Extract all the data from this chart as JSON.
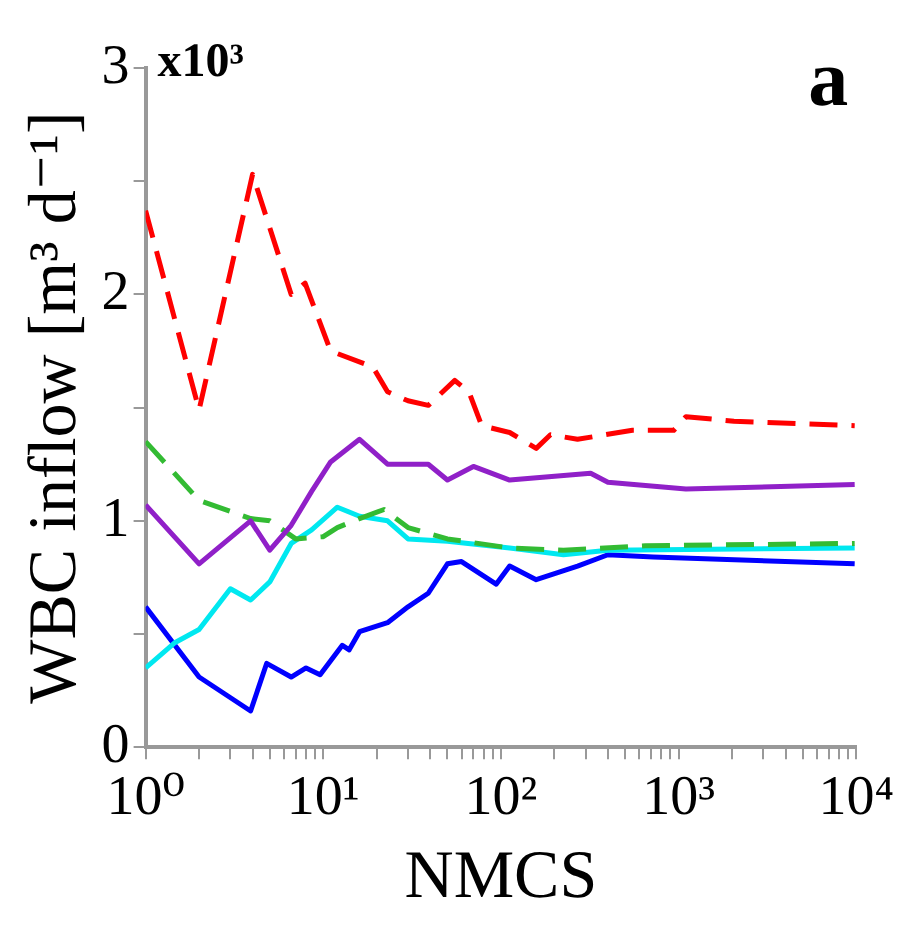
{
  "chart_data": {
    "type": "line",
    "xlabel": "NMCS",
    "ylabel": "WBC inflow [m³ d⁻¹]",
    "annotations": [
      "x10³",
      "a"
    ],
    "log": "x",
    "xlim": [
      1,
      10000
    ],
    "ylim": [
      0,
      3
    ],
    "xticks": [
      {
        "value": 1,
        "label": "10⁰"
      },
      {
        "value": 2,
        "label": null
      },
      {
        "value": 3,
        "label": null
      },
      {
        "value": 4,
        "label": null
      },
      {
        "value": 5,
        "label": null
      },
      {
        "value": 6,
        "label": null
      },
      {
        "value": 7,
        "label": null
      },
      {
        "value": 8,
        "label": null
      },
      {
        "value": 9,
        "label": null
      },
      {
        "value": 10,
        "label": "10¹"
      },
      {
        "value": 20,
        "label": null
      },
      {
        "value": 30,
        "label": null
      },
      {
        "value": 40,
        "label": null
      },
      {
        "value": 50,
        "label": null
      },
      {
        "value": 60,
        "label": null
      },
      {
        "value": 70,
        "label": null
      },
      {
        "value": 80,
        "label": null
      },
      {
        "value": 90,
        "label": null
      },
      {
        "value": 100,
        "label": "10²"
      },
      {
        "value": 200,
        "label": null
      },
      {
        "value": 300,
        "label": null
      },
      {
        "value": 400,
        "label": null
      },
      {
        "value": 500,
        "label": null
      },
      {
        "value": 600,
        "label": null
      },
      {
        "value": 700,
        "label": null
      },
      {
        "value": 800,
        "label": null
      },
      {
        "value": 900,
        "label": null
      },
      {
        "value": 1000,
        "label": "10³"
      },
      {
        "value": 2000,
        "label": null
      },
      {
        "value": 3000,
        "label": null
      },
      {
        "value": 4000,
        "label": null
      },
      {
        "value": 5000,
        "label": null
      },
      {
        "value": 6000,
        "label": null
      },
      {
        "value": 7000,
        "label": null
      },
      {
        "value": 8000,
        "label": null
      },
      {
        "value": 9000,
        "label": null
      },
      {
        "value": 10000,
        "label": "10⁴"
      }
    ],
    "yticks": [
      0,
      {
        "value": 0.5,
        "label": null
      },
      1,
      {
        "value": 1.5,
        "label": null
      },
      2,
      {
        "value": 2.5,
        "label": null
      },
      3
    ],
    "grid": false,
    "legend": false,
    "marker": "none",
    "series": [
      {
        "color": "#ff0000",
        "line_style": "dashed",
        "x": [
          1,
          2,
          4,
          6.6,
          7.9,
          11,
          19,
          23,
          30,
          39,
          55,
          66,
          78,
          112,
          158,
          190,
          270,
          550,
          940,
          1100,
          2050,
          9800
        ],
        "values": [
          2.37,
          1.49,
          2.53,
          2.0,
          2.05,
          1.75,
          1.68,
          1.57,
          1.53,
          1.51,
          1.62,
          1.57,
          1.42,
          1.39,
          1.32,
          1.38,
          1.36,
          1.4,
          1.4,
          1.46,
          1.44,
          1.42
        ]
      },
      {
        "color": "#9020c8",
        "line_style": "solid",
        "x": [
          1,
          2,
          3.9,
          5,
          6.6,
          8.6,
          11,
          16,
          23,
          39,
          50,
          70,
          112,
          320,
          400,
          1100,
          9800
        ],
        "values": [
          1.07,
          0.81,
          1.0,
          0.87,
          0.98,
          1.13,
          1.26,
          1.36,
          1.25,
          1.25,
          1.18,
          1.24,
          1.18,
          1.21,
          1.17,
          1.14,
          1.16
        ]
      },
      {
        "color": "#33bb33",
        "line_style": "dashed",
        "x": [
          1,
          2,
          3.9,
          5,
          7,
          10,
          12,
          16,
          22,
          30,
          50,
          112,
          225,
          650,
          9800
        ],
        "values": [
          1.35,
          1.09,
          1.01,
          1.0,
          0.92,
          0.93,
          0.97,
          1.01,
          1.05,
          0.97,
          0.92,
          0.88,
          0.87,
          0.89,
          0.9
        ]
      },
      {
        "color": "#00e8f0",
        "line_style": "solid",
        "x": [
          1,
          1.45,
          2,
          3,
          3.9,
          5,
          6.6,
          8.6,
          12,
          16,
          23,
          30,
          50,
          112,
          225,
          400,
          9800
        ],
        "values": [
          0.35,
          0.46,
          0.52,
          0.7,
          0.65,
          0.73,
          0.9,
          0.96,
          1.06,
          1.02,
          1.0,
          0.92,
          0.91,
          0.88,
          0.85,
          0.87,
          0.88
        ]
      },
      {
        "color": "#0000ff",
        "line_style": "solid",
        "x": [
          1,
          2,
          3.9,
          4.8,
          6.6,
          8,
          9.6,
          12.8,
          14,
          16,
          23,
          30,
          39,
          50,
          60,
          94,
          112,
          158,
          270,
          400,
          720,
          9800
        ],
        "values": [
          0.62,
          0.31,
          0.16,
          0.37,
          0.31,
          0.35,
          0.32,
          0.45,
          0.43,
          0.51,
          0.55,
          0.62,
          0.68,
          0.81,
          0.82,
          0.72,
          0.8,
          0.74,
          0.8,
          0.85,
          0.84,
          0.81
        ]
      }
    ]
  }
}
